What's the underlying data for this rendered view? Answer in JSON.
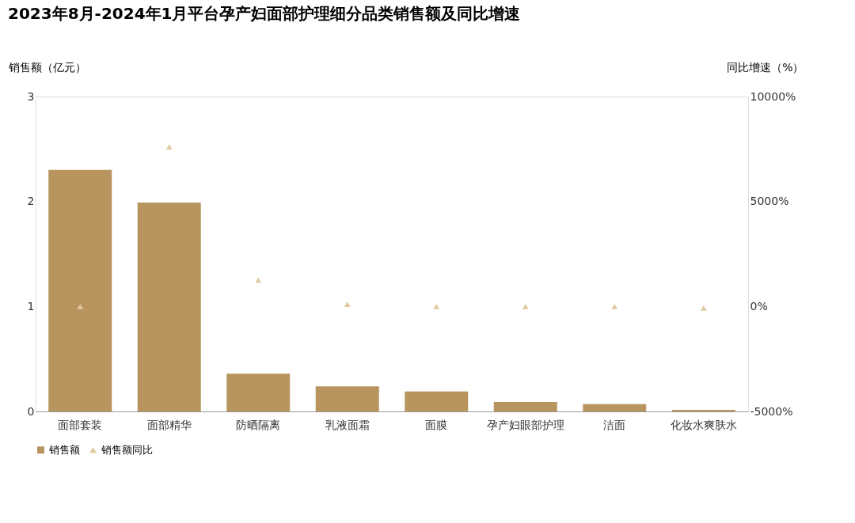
{
  "chart_data": {
    "type": "bar",
    "title": "2023年8月-2024年1月平台孕产妇面部护理细分品类销售额及同比增速",
    "ylabel": "销售额（亿元）",
    "y2label": "同比增速（%）",
    "categories": [
      "面部套装",
      "面部精华",
      "防晒隔离",
      "乳液面霜",
      "面膜",
      "孕产妇眼部护理",
      "洁面",
      "化妆水爽肤水"
    ],
    "series": [
      {
        "name": "销售额",
        "color": "#b8955e",
        "values": [
          2.3,
          1.99,
          0.36,
          0.24,
          0.19,
          0.09,
          0.07,
          0.015
        ]
      },
      {
        "name": "销售额同比",
        "type": "scatter",
        "axis": "y2",
        "marker": "triangle",
        "color": "#e0c9a0",
        "values": [
          0,
          7600,
          1250,
          100,
          0,
          0,
          0,
          -80
        ]
      }
    ],
    "ylim": [
      0,
      3
    ],
    "yticks": [
      0,
      1,
      2,
      3
    ],
    "y2lim": [
      -5000,
      10000
    ],
    "y2ticks": [
      {
        "value": -5000,
        "label": "-5000%"
      },
      {
        "value": 0,
        "label": "0%"
      },
      {
        "value": 5000,
        "label": "5000%"
      },
      {
        "value": 10000,
        "label": "10000%"
      }
    ],
    "grid": false,
    "legend": "bottom"
  }
}
